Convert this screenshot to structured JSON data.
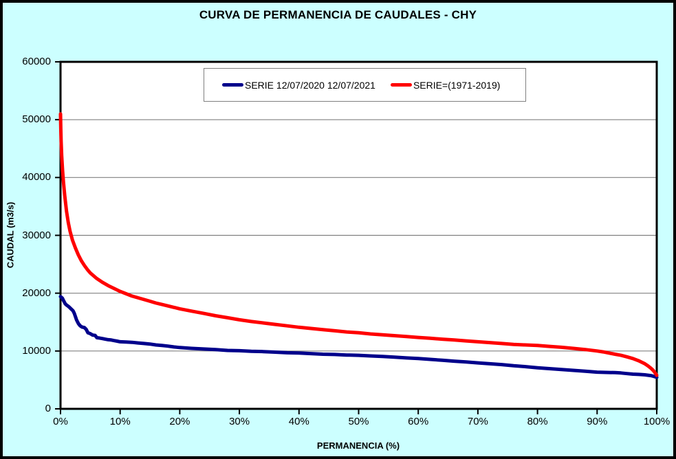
{
  "title": "CURVA DE PERMANENCIA DE CAUDALES - CHY",
  "colors": {
    "background": "#CCFFFF",
    "plot_background": "#FFFFFF",
    "gridline": "#808080",
    "axis": "#000000",
    "series_current_blue": "#00008B",
    "series_historic_red": "#FF0000",
    "legend_border": "#7F7F7F"
  },
  "chart_data": {
    "type": "line",
    "title": "CURVA DE PERMANENCIA DE CAUDALES - CHY",
    "xlabel": "PERMANENCIA (%)",
    "ylabel": "CAUDAL (m3/s)",
    "xlim": [
      0,
      100
    ],
    "ylim": [
      0,
      60000
    ],
    "grid": "horizontal-major",
    "legend_position": "top-center-inside",
    "x_tick_values": [
      0,
      10,
      20,
      30,
      40,
      50,
      60,
      70,
      80,
      90,
      100
    ],
    "x_tick_labels": [
      "0%",
      "10%",
      "20%",
      "30%",
      "40%",
      "50%",
      "60%",
      "70%",
      "80%",
      "90%",
      "100%"
    ],
    "y_tick_values": [
      0,
      10000,
      20000,
      30000,
      40000,
      50000,
      60000
    ],
    "y_tick_labels": [
      "0",
      "10000",
      "20000",
      "30000",
      "40000",
      "50000",
      "60000"
    ],
    "series": [
      {
        "name": "SERIE 12/07/2020 12/07/2021",
        "color": "#00008B",
        "line_width": 5,
        "points": [
          [
            0,
            19400
          ],
          [
            0.3,
            19150
          ],
          [
            0.5,
            18750
          ],
          [
            0.8,
            18150
          ],
          [
            1,
            17950
          ],
          [
            1.4,
            17650
          ],
          [
            1.8,
            17250
          ],
          [
            2.1,
            16950
          ],
          [
            2.3,
            16550
          ],
          [
            2.5,
            15950
          ],
          [
            2.7,
            15350
          ],
          [
            3,
            14750
          ],
          [
            3.3,
            14350
          ],
          [
            3.6,
            14150
          ],
          [
            4,
            14050
          ],
          [
            4.3,
            13750
          ],
          [
            4.6,
            13150
          ],
          [
            5,
            13000
          ],
          [
            5.4,
            12750
          ],
          [
            5.8,
            12700
          ],
          [
            6.1,
            12300
          ],
          [
            6.5,
            12250
          ],
          [
            7,
            12150
          ],
          [
            7.5,
            12050
          ],
          [
            8,
            11950
          ],
          [
            8.5,
            11900
          ],
          [
            9,
            11800
          ],
          [
            9.5,
            11700
          ],
          [
            10,
            11600
          ],
          [
            11,
            11550
          ],
          [
            12,
            11500
          ],
          [
            13,
            11400
          ],
          [
            14,
            11300
          ],
          [
            15,
            11200
          ],
          [
            16,
            11050
          ],
          [
            17,
            10950
          ],
          [
            18,
            10850
          ],
          [
            19,
            10700
          ],
          [
            20,
            10600
          ],
          [
            22,
            10450
          ],
          [
            24,
            10350
          ],
          [
            26,
            10250
          ],
          [
            28,
            10100
          ],
          [
            30,
            10050
          ],
          [
            32,
            9950
          ],
          [
            34,
            9900
          ],
          [
            36,
            9800
          ],
          [
            38,
            9700
          ],
          [
            40,
            9650
          ],
          [
            42,
            9550
          ],
          [
            44,
            9450
          ],
          [
            46,
            9400
          ],
          [
            48,
            9300
          ],
          [
            50,
            9250
          ],
          [
            52,
            9150
          ],
          [
            54,
            9050
          ],
          [
            56,
            8950
          ],
          [
            58,
            8800
          ],
          [
            60,
            8700
          ],
          [
            62,
            8550
          ],
          [
            64,
            8400
          ],
          [
            66,
            8250
          ],
          [
            68,
            8100
          ],
          [
            70,
            7950
          ],
          [
            72,
            7800
          ],
          [
            74,
            7650
          ],
          [
            76,
            7450
          ],
          [
            78,
            7300
          ],
          [
            80,
            7100
          ],
          [
            82,
            6950
          ],
          [
            84,
            6800
          ],
          [
            86,
            6650
          ],
          [
            88,
            6500
          ],
          [
            90,
            6350
          ],
          [
            92,
            6280
          ],
          [
            93,
            6260
          ],
          [
            94,
            6200
          ],
          [
            95,
            6100
          ],
          [
            96,
            6000
          ],
          [
            97,
            5950
          ],
          [
            98,
            5880
          ],
          [
            99,
            5750
          ],
          [
            99.5,
            5620
          ],
          [
            100,
            5450
          ]
        ]
      },
      {
        "name": "SERIE=(1971-2019)",
        "color": "#FF0000",
        "line_width": 5,
        "points": [
          [
            0,
            51000
          ],
          [
            0.05,
            48500
          ],
          [
            0.1,
            46200
          ],
          [
            0.2,
            43800
          ],
          [
            0.35,
            41200
          ],
          [
            0.5,
            39200
          ],
          [
            0.7,
            36900
          ],
          [
            1,
            34200
          ],
          [
            1.3,
            32200
          ],
          [
            1.6,
            30700
          ],
          [
            2,
            29200
          ],
          [
            2.5,
            27800
          ],
          [
            3,
            26600
          ],
          [
            3.5,
            25600
          ],
          [
            4,
            24800
          ],
          [
            4.5,
            24100
          ],
          [
            5,
            23500
          ],
          [
            6,
            22600
          ],
          [
            7,
            21900
          ],
          [
            8,
            21300
          ],
          [
            9,
            20800
          ],
          [
            10,
            20300
          ],
          [
            11,
            19900
          ],
          [
            12,
            19500
          ],
          [
            13,
            19200
          ],
          [
            14,
            18900
          ],
          [
            15,
            18600
          ],
          [
            16,
            18300
          ],
          [
            17,
            18050
          ],
          [
            18,
            17800
          ],
          [
            19,
            17550
          ],
          [
            20,
            17300
          ],
          [
            22,
            16900
          ],
          [
            24,
            16500
          ],
          [
            26,
            16100
          ],
          [
            28,
            15750
          ],
          [
            30,
            15400
          ],
          [
            32,
            15100
          ],
          [
            34,
            14850
          ],
          [
            36,
            14600
          ],
          [
            38,
            14350
          ],
          [
            40,
            14100
          ],
          [
            42,
            13900
          ],
          [
            44,
            13700
          ],
          [
            46,
            13500
          ],
          [
            48,
            13300
          ],
          [
            50,
            13150
          ],
          [
            52,
            12950
          ],
          [
            54,
            12800
          ],
          [
            56,
            12650
          ],
          [
            58,
            12500
          ],
          [
            60,
            12350
          ],
          [
            62,
            12200
          ],
          [
            64,
            12050
          ],
          [
            66,
            11900
          ],
          [
            68,
            11750
          ],
          [
            70,
            11600
          ],
          [
            72,
            11450
          ],
          [
            74,
            11300
          ],
          [
            76,
            11150
          ],
          [
            78,
            11050
          ],
          [
            80,
            10950
          ],
          [
            82,
            10800
          ],
          [
            84,
            10650
          ],
          [
            86,
            10450
          ],
          [
            88,
            10250
          ],
          [
            90,
            10000
          ],
          [
            91,
            9850
          ],
          [
            92,
            9650
          ],
          [
            93,
            9450
          ],
          [
            94,
            9250
          ],
          [
            95,
            9000
          ],
          [
            96,
            8700
          ],
          [
            97,
            8300
          ],
          [
            98,
            7800
          ],
          [
            98.5,
            7450
          ],
          [
            99,
            7050
          ],
          [
            99.4,
            6650
          ],
          [
            99.7,
            6250
          ],
          [
            100,
            5800
          ]
        ]
      }
    ]
  }
}
